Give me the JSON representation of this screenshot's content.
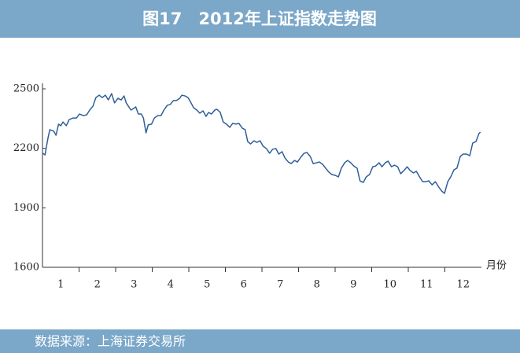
{
  "chart_data": {
    "type": "line",
    "title": "图17　2012年上证指数走势图",
    "source": "数据来源：上海证券交易所",
    "xlabel": "月份",
    "color": "#2f5f98",
    "xlim": [
      0.5,
      12.5
    ],
    "xticks": [
      1,
      2,
      3,
      4,
      5,
      6,
      7,
      8,
      9,
      10,
      11,
      12
    ],
    "ylim": [
      1600,
      2500
    ],
    "yticks": [
      1600,
      1900,
      2200,
      2500
    ],
    "x": [
      0.51,
      0.57,
      0.64,
      0.7,
      0.81,
      0.87,
      0.94,
      1.0,
      1.06,
      1.15,
      1.23,
      1.34,
      1.43,
      1.51,
      1.62,
      1.71,
      1.79,
      1.88,
      1.96,
      2.05,
      2.13,
      2.22,
      2.3,
      2.39,
      2.47,
      2.56,
      2.65,
      2.73,
      2.79,
      2.86,
      2.92,
      2.99,
      3.05,
      3.12,
      3.2,
      3.26,
      3.33,
      3.39,
      3.48,
      3.56,
      3.65,
      3.74,
      3.82,
      3.91,
      3.99,
      4.08,
      4.16,
      4.25,
      4.31,
      4.4,
      4.48,
      4.55,
      4.63,
      4.72,
      4.8,
      4.89,
      4.97,
      5.04,
      5.12,
      5.21,
      5.27,
      5.36,
      5.44,
      5.53,
      5.62,
      5.7,
      5.79,
      5.87,
      5.96,
      6.04,
      6.11,
      6.19,
      6.28,
      6.36,
      6.45,
      6.53,
      6.62,
      6.71,
      6.79,
      6.88,
      6.96,
      7.05,
      7.13,
      7.22,
      7.3,
      7.39,
      7.47,
      7.56,
      7.65,
      7.73,
      7.82,
      7.9,
      7.99,
      8.07,
      8.16,
      8.24,
      8.33,
      8.41,
      8.5,
      8.59,
      8.67,
      8.76,
      8.84,
      8.93,
      9.01,
      9.1,
      9.18,
      9.27,
      9.35,
      9.44,
      9.53,
      9.61,
      9.7,
      9.78,
      9.87,
      9.95,
      10.04,
      10.12,
      10.21,
      10.29,
      10.38,
      10.47,
      10.55,
      10.64,
      10.72,
      10.81,
      10.89,
      10.98,
      11.06,
      11.15,
      11.24,
      11.32,
      11.41,
      11.49,
      11.58,
      11.66,
      11.75,
      11.83,
      11.92,
      12.0,
      12.09,
      12.18,
      12.26,
      12.35,
      12.43,
      12.47
    ],
    "values": [
      2175,
      2167,
      2242,
      2294,
      2286,
      2266,
      2322,
      2314,
      2333,
      2314,
      2345,
      2353,
      2353,
      2373,
      2365,
      2369,
      2393,
      2413,
      2456,
      2468,
      2456,
      2468,
      2444,
      2476,
      2429,
      2452,
      2444,
      2464,
      2429,
      2409,
      2393,
      2401,
      2409,
      2373,
      2373,
      2353,
      2278,
      2318,
      2322,
      2353,
      2365,
      2365,
      2393,
      2417,
      2421,
      2441,
      2441,
      2452,
      2468,
      2464,
      2456,
      2433,
      2405,
      2393,
      2377,
      2389,
      2361,
      2381,
      2373,
      2393,
      2397,
      2381,
      2333,
      2322,
      2306,
      2326,
      2322,
      2326,
      2302,
      2294,
      2234,
      2222,
      2238,
      2230,
      2238,
      2211,
      2199,
      2175,
      2195,
      2199,
      2171,
      2183,
      2151,
      2131,
      2123,
      2139,
      2131,
      2155,
      2175,
      2179,
      2159,
      2123,
      2127,
      2131,
      2119,
      2100,
      2080,
      2068,
      2064,
      2056,
      2100,
      2127,
      2139,
      2127,
      2111,
      2100,
      2036,
      2028,
      2056,
      2068,
      2107,
      2111,
      2127,
      2107,
      2127,
      2135,
      2107,
      2115,
      2107,
      2072,
      2088,
      2107,
      2088,
      2076,
      2084,
      2056,
      2032,
      2032,
      2036,
      2016,
      2032,
      2008,
      1985,
      1973,
      2032,
      2056,
      2092,
      2100,
      2159,
      2171,
      2171,
      2163,
      2226,
      2234,
      2274,
      2282
    ]
  }
}
